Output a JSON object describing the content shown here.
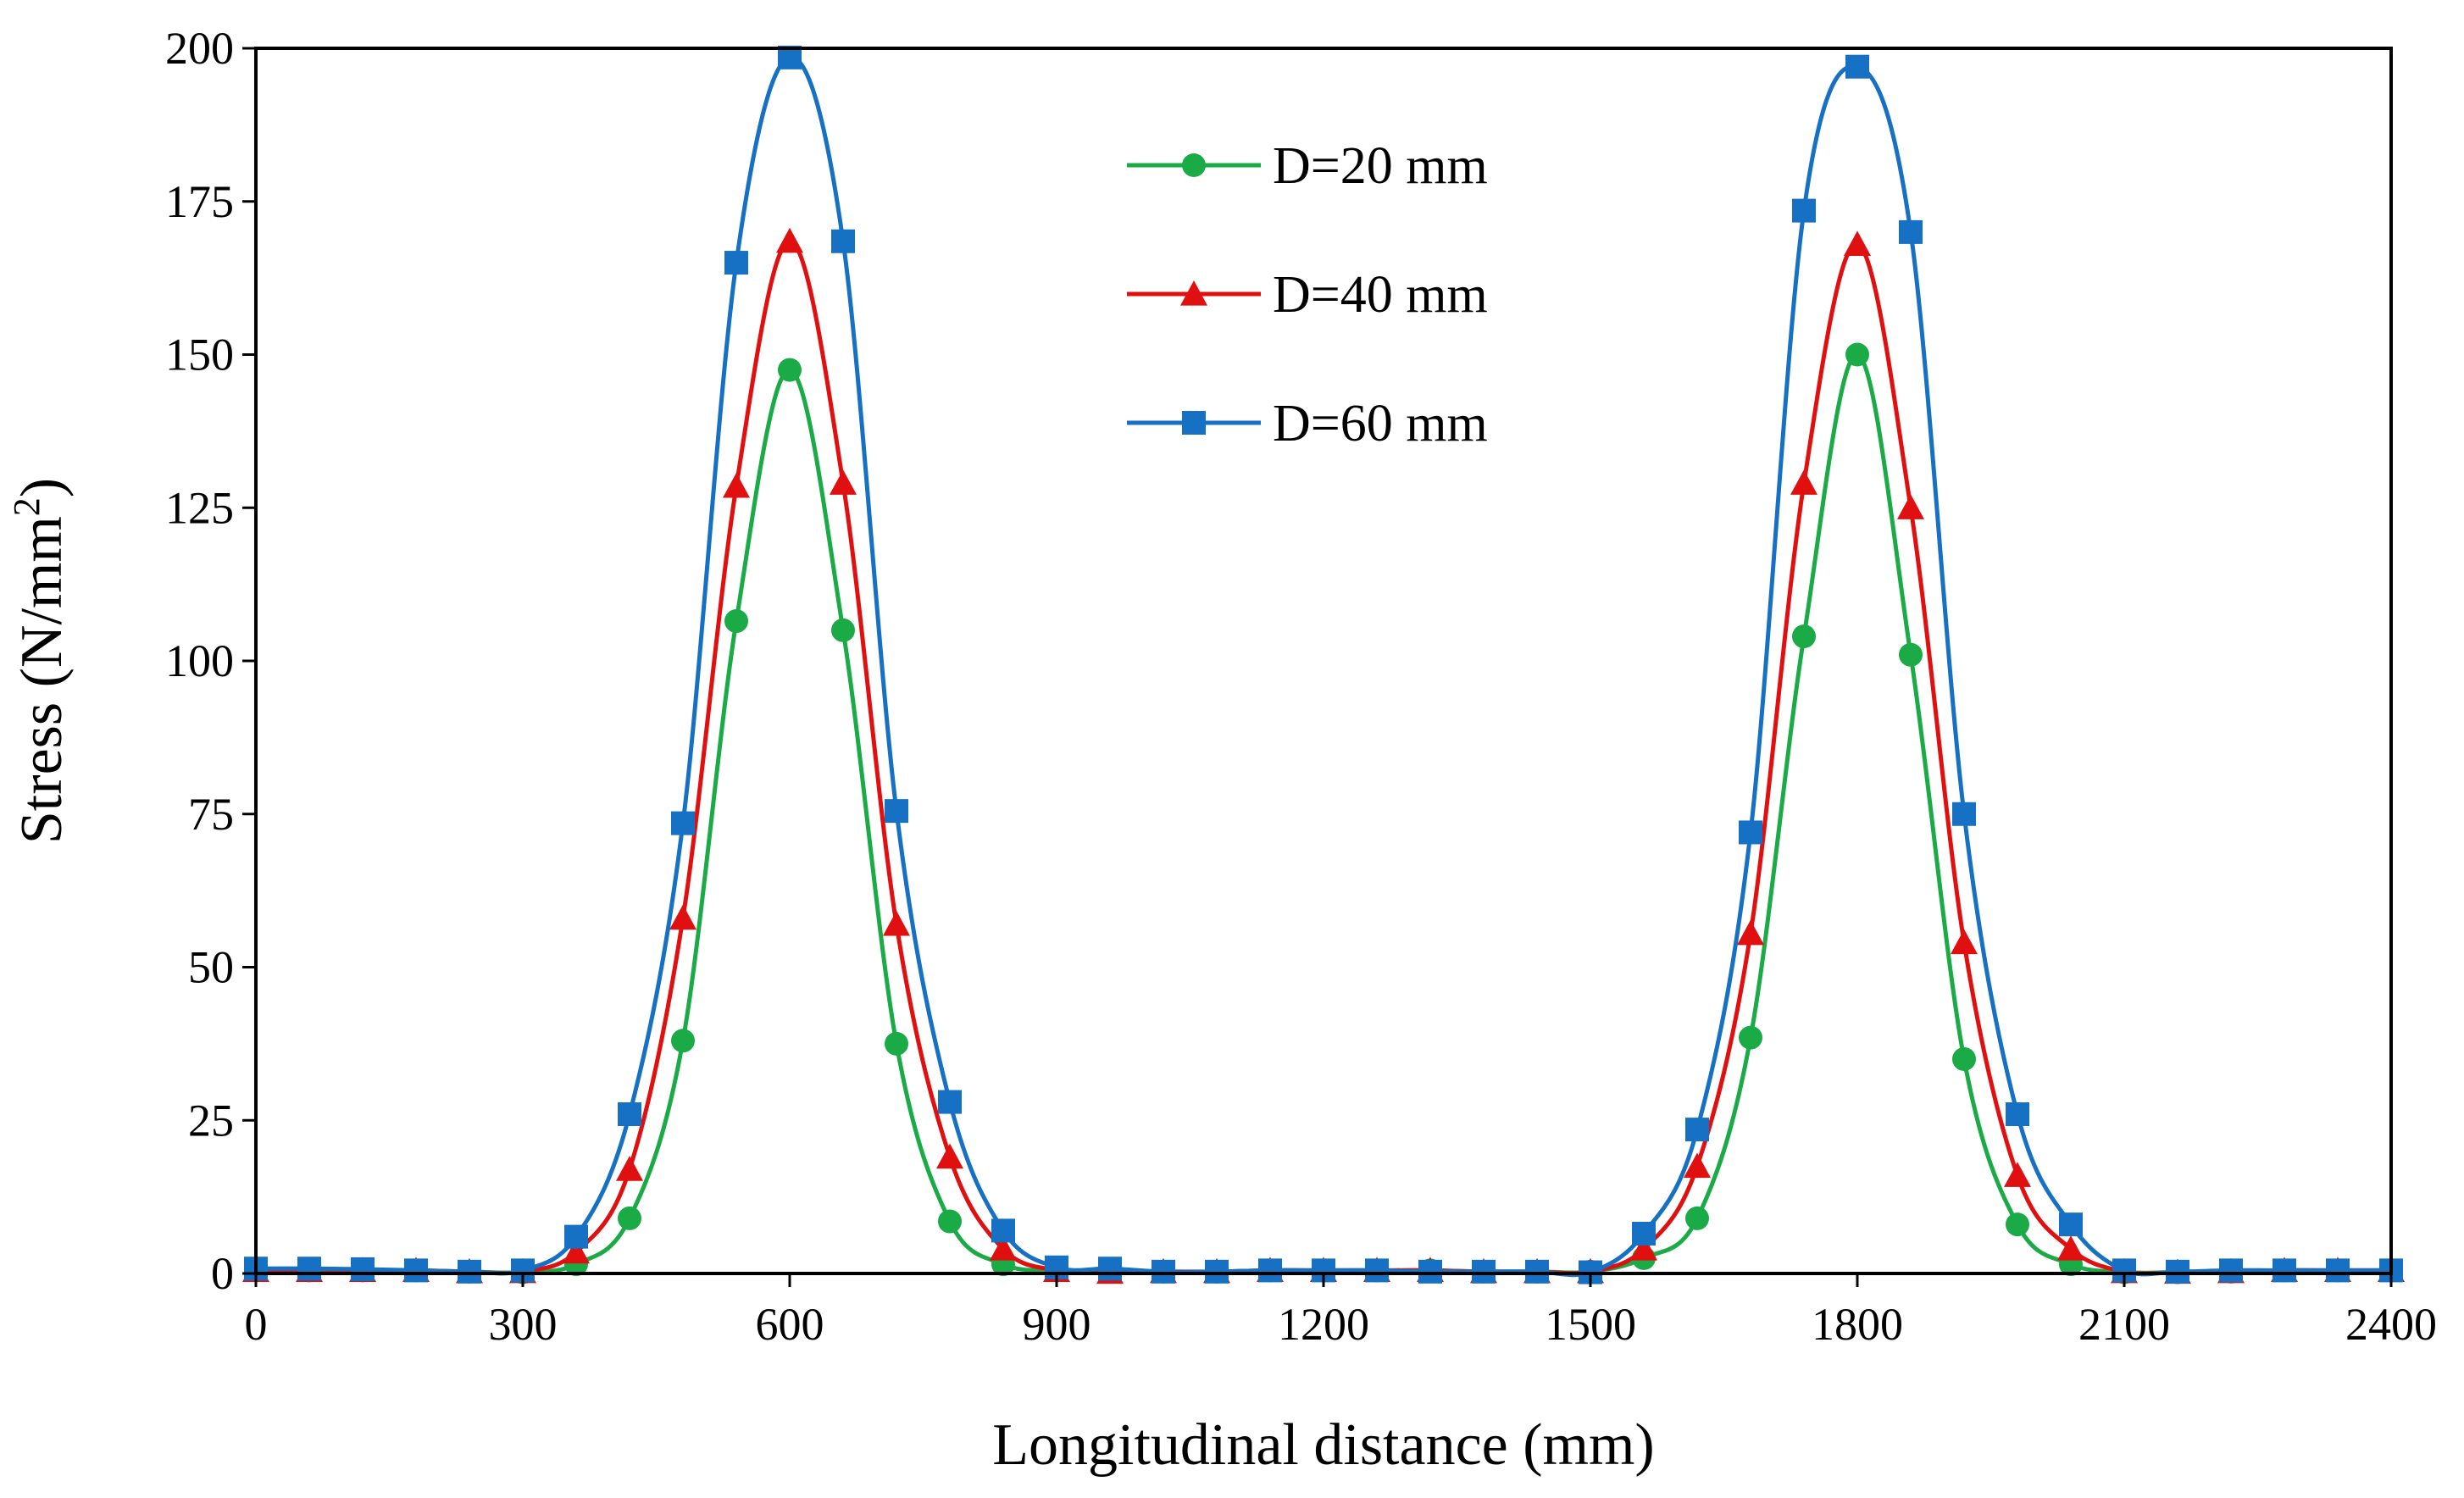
{
  "chart_data": {
    "type": "line",
    "xlabel": "Longitudinal distance (mm)",
    "ylabel": "Stress (N/mm",
    "ylabel_sup": "2",
    "ylabel_close": ")",
    "xlim": [
      0,
      2400
    ],
    "ylim": [
      0,
      200
    ],
    "xticks": [
      0,
      300,
      600,
      900,
      1200,
      1500,
      1800,
      2100,
      2400
    ],
    "yticks": [
      0,
      25,
      50,
      75,
      100,
      125,
      150,
      175,
      200
    ],
    "legend_position": "top-center",
    "x": [
      0,
      60,
      120,
      180,
      240,
      300,
      360,
      420,
      480,
      540,
      600,
      660,
      720,
      780,
      840,
      900,
      960,
      1020,
      1080,
      1140,
      1200,
      1260,
      1320,
      1380,
      1440,
      1500,
      1560,
      1620,
      1680,
      1740,
      1800,
      1860,
      1920,
      1980,
      2040,
      2100,
      2160,
      2220,
      2280,
      2340,
      2400
    ],
    "series": [
      {
        "name": "D=20 mm",
        "color": "#1aaa46",
        "marker": "circle",
        "values": [
          0.5,
          0.5,
          0.5,
          0.5,
          0.3,
          0.2,
          1.5,
          9,
          38,
          106.5,
          147.5,
          105,
          37.5,
          8.5,
          1.5,
          0.5,
          0.5,
          0.3,
          0.3,
          0.5,
          0.5,
          0.5,
          0.5,
          0.3,
          0.3,
          0.3,
          2.5,
          9,
          38.5,
          104,
          150,
          101,
          35,
          8,
          1.5,
          0.2,
          0.2,
          0.3,
          0.5,
          0.5,
          0.5
        ]
      },
      {
        "name": "D=40 mm",
        "color": "#e01010",
        "marker": "triangle",
        "values": [
          0.5,
          0.5,
          0.5,
          0.5,
          0.3,
          0.3,
          3.5,
          17,
          58,
          128.5,
          168.5,
          129,
          57,
          19,
          4,
          0.5,
          0.2,
          0.3,
          0.3,
          0.5,
          0.5,
          0.5,
          0.5,
          0.3,
          0.3,
          0.3,
          4,
          17.5,
          55.5,
          129,
          168,
          125,
          54,
          16,
          4,
          0.3,
          0.2,
          0.3,
          0.5,
          0.5,
          0.5
        ]
      },
      {
        "name": "D=60 mm",
        "color": "#1670c3",
        "marker": "square",
        "values": [
          0.8,
          0.8,
          0.7,
          0.5,
          0.3,
          0.5,
          6,
          26,
          73.5,
          165,
          198.5,
          168.5,
          75.5,
          28,
          7,
          1,
          0.8,
          0.3,
          0.3,
          0.5,
          0.5,
          0.5,
          0.3,
          0.3,
          0.3,
          0.2,
          6.5,
          23.5,
          72,
          173.5,
          197,
          170,
          75,
          26,
          8,
          0.5,
          0.3,
          0.5,
          0.5,
          0.5,
          0.5
        ]
      }
    ]
  }
}
